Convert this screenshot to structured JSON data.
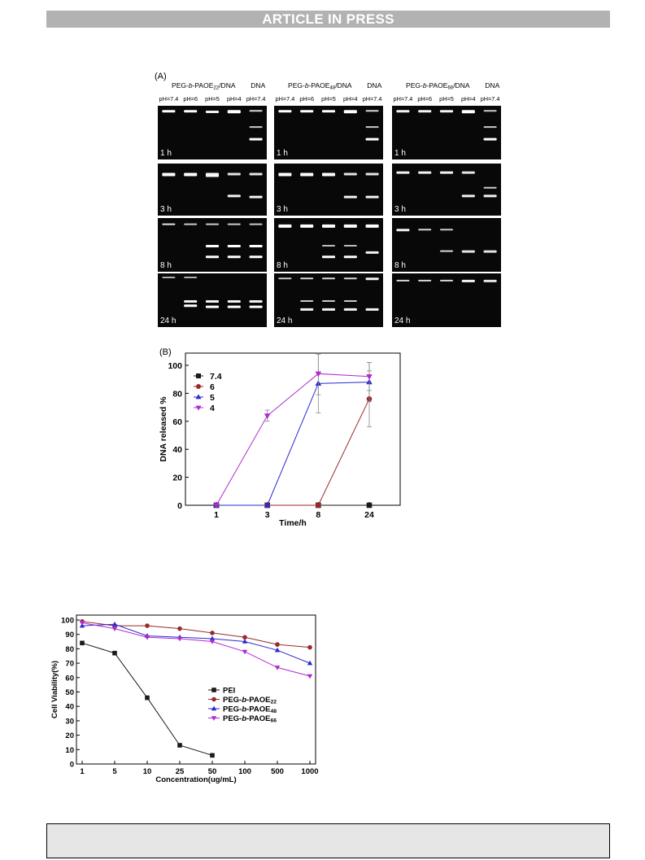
{
  "header": {
    "banner_text": "ARTICLE IN PRESS"
  },
  "gel_figure": {
    "panel_label": "(A)",
    "groups": [
      {
        "title_pre": "PEG-",
        "title_b": "b",
        "title_mid": "-PAOE",
        "title_sub": "22",
        "title_post": "/DNA",
        "dna_label": "DNA",
        "lanes": [
          "pH=7.4",
          "pH=6",
          "pH=5",
          "pH=4",
          "pH=7.4"
        ]
      },
      {
        "title_pre": "PEG-",
        "title_b": "b",
        "title_mid": "-PAOE",
        "title_sub": "48",
        "title_post": "/DNA",
        "dna_label": "DNA",
        "lanes": [
          "pH=7.4",
          "pH=6",
          "pH=5",
          "pH=4",
          "pH=7.4"
        ]
      },
      {
        "title_pre": "PEG-",
        "title_b": "b",
        "title_mid": "-PAOE",
        "title_sub": "66",
        "title_post": "/DNA",
        "dna_label": "DNA",
        "lanes": [
          "pH=7.4",
          "pH=6",
          "pH=5",
          "pH=4",
          "pH=7.4"
        ]
      }
    ],
    "time_labels": [
      "1 h",
      "3 h",
      "8 h",
      "24 h"
    ]
  },
  "chart_data": [
    {
      "type": "line",
      "panel_label": "(B)",
      "xlabel": "Time/h",
      "ylabel": "DNA released %",
      "categories": [
        "1",
        "3",
        "8",
        "24"
      ],
      "ylim": [
        0,
        100
      ],
      "yticks": [
        0,
        20,
        40,
        60,
        80,
        100
      ],
      "legend_position": "top-left",
      "series": [
        {
          "name": "7.4",
          "color": "#1a1a1a",
          "marker": "square",
          "values": [
            0,
            0,
            0,
            0
          ],
          "errors": [
            0,
            0,
            0,
            0
          ]
        },
        {
          "name": "6",
          "color": "#9a2a2a",
          "marker": "circle",
          "values": [
            0,
            0,
            0,
            76
          ],
          "errors": [
            0,
            0,
            0,
            20
          ]
        },
        {
          "name": "5",
          "color": "#2a2ad0",
          "marker": "triangle-up",
          "values": [
            0,
            0,
            87,
            88
          ],
          "errors": [
            0,
            0,
            21,
            14
          ]
        },
        {
          "name": "4",
          "color": "#b02ad0",
          "marker": "triangle-down",
          "values": [
            0,
            64,
            94,
            92
          ],
          "errors": [
            0,
            4,
            15,
            10
          ]
        }
      ]
    },
    {
      "type": "line",
      "xlabel": "Concentration(ug/mL)",
      "ylabel": "Cell Viability(%)",
      "categories": [
        "1",
        "5",
        "10",
        "25",
        "50",
        "100",
        "500",
        "1000"
      ],
      "ylim": [
        0,
        100
      ],
      "yticks": [
        0,
        10,
        20,
        30,
        40,
        50,
        60,
        70,
        80,
        90,
        100
      ],
      "legend_position": "center-right",
      "series": [
        {
          "name": "PEI",
          "name_pre": "PEI",
          "name_b": "",
          "name_mid": "",
          "name_sub": "",
          "color": "#1a1a1a",
          "marker": "square",
          "values": [
            84,
            77,
            46,
            13,
            6,
            null,
            null,
            null
          ]
        },
        {
          "name": "PEG-b-PAOE22",
          "name_pre": "PEG-",
          "name_b": "b",
          "name_mid": "-PAOE",
          "name_sub": "22",
          "color": "#9a2a2a",
          "marker": "circle",
          "values": [
            99,
            96,
            96,
            94,
            91,
            88,
            83,
            81
          ]
        },
        {
          "name": "PEG-b-PAOE48",
          "name_pre": "PEG-",
          "name_b": "b",
          "name_mid": "-PAOE",
          "name_sub": "48",
          "color": "#2a2ad0",
          "marker": "triangle-up",
          "values": [
            96,
            97,
            89,
            88,
            87,
            85,
            79,
            70
          ]
        },
        {
          "name": "PEG-b-PAOE66",
          "name_pre": "PEG-",
          "name_b": "b",
          "name_mid": "-PAOE",
          "name_sub": "66",
          "color": "#b02ad0",
          "marker": "triangle-down",
          "values": [
            98,
            94,
            88,
            87,
            85,
            78,
            67,
            61
          ]
        }
      ]
    }
  ]
}
